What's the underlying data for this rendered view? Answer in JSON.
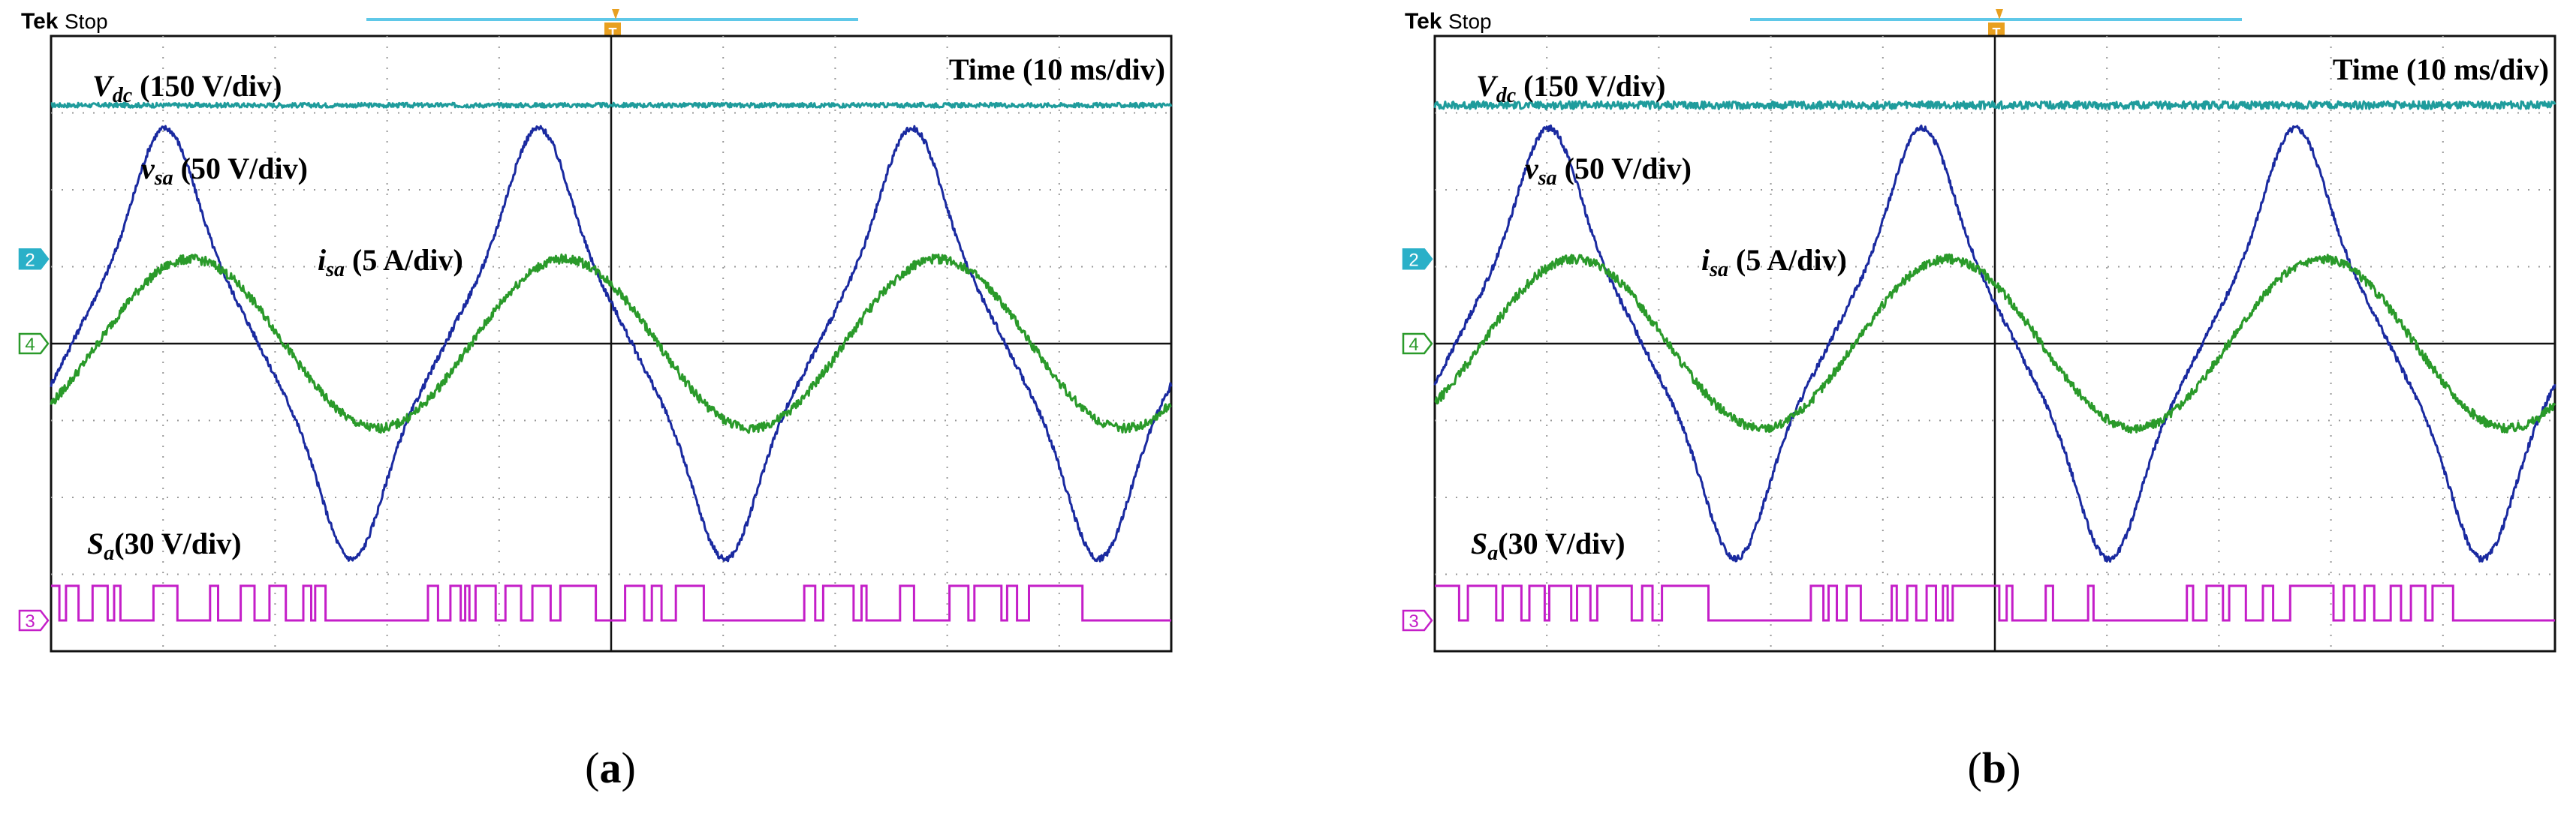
{
  "chart_data": [
    {
      "type": "line",
      "panel_label": "a",
      "header": {
        "brand": "Tek",
        "status": "Stop"
      },
      "time_scale_label": "Time (10 ms/div)",
      "grid": {
        "on": true,
        "x_divisions": 10,
        "y_divisions": 8
      },
      "x_range_ms": [
        0,
        100
      ],
      "y_range_div": [
        -4,
        4
      ],
      "channel_markers": [
        "2",
        "4",
        "3"
      ],
      "series": [
        {
          "name": "V_dc",
          "label_main": "V",
          "label_sub": "dc",
          "label_rest": " (150 V/div)",
          "color": "#1f9c9c",
          "waveform": "dc",
          "level_div": 3.1,
          "noise_div": 0.03
        },
        {
          "name": "v_sa",
          "label_main": "v",
          "label_sub": "sa",
          "label_rest": " (50 V/div)",
          "color": "#1a2aa0",
          "waveform": "peaky_sine",
          "frequency_hz": 30,
          "amplitude_div": 2.8,
          "phase_deg": -20,
          "noise_div": 0.04
        },
        {
          "name": "i_sa",
          "label_main": "i",
          "label_sub": "sa",
          "label_rest": " (5 A/div)",
          "color": "#2a9a2a",
          "waveform": "sine",
          "frequency_hz": 30,
          "amplitude_div": 1.1,
          "phase_deg": -45,
          "offset_div": 0.0,
          "noise_div": 0.06
        },
        {
          "name": "S_a",
          "label_main": "S",
          "label_sub": "a",
          "label_rest": "(30 V/div)",
          "color": "#c41ec8",
          "waveform": "pwm",
          "frequency_hz": 30,
          "low_div": -3.6,
          "high_div": -3.15
        }
      ]
    },
    {
      "type": "line",
      "panel_label": "b",
      "header": {
        "brand": "Tek",
        "status": "Stop"
      },
      "time_scale_label": "Time (10 ms/div)",
      "grid": {
        "on": true,
        "x_divisions": 10,
        "y_divisions": 8
      },
      "x_range_ms": [
        0,
        100
      ],
      "y_range_div": [
        -4,
        4
      ],
      "channel_markers": [
        "2",
        "4",
        "3"
      ],
      "series": [
        {
          "name": "V_dc",
          "label_main": "V",
          "label_sub": "dc",
          "label_rest": " (150 V/div)",
          "color": "#1f9c9c",
          "waveform": "dc",
          "level_div": 3.1,
          "noise_div": 0.05
        },
        {
          "name": "v_sa",
          "label_main": "v",
          "label_sub": "sa",
          "label_rest": " (50 V/div)",
          "color": "#1a2aa0",
          "waveform": "peaky_sine",
          "frequency_hz": 30,
          "amplitude_div": 2.8,
          "phase_deg": -20,
          "noise_div": 0.04
        },
        {
          "name": "i_sa",
          "label_main": "i",
          "label_sub": "sa",
          "label_rest": " (5 A/div)",
          "color": "#2a9a2a",
          "waveform": "sine",
          "frequency_hz": 30,
          "amplitude_div": 1.1,
          "phase_deg": -45,
          "offset_div": 0.0,
          "noise_div": 0.06
        },
        {
          "name": "S_a",
          "label_main": "S",
          "label_sub": "a",
          "label_rest": "(30 V/div)",
          "color": "#c41ec8",
          "waveform": "pwm",
          "frequency_hz": 30,
          "low_div": -3.6,
          "high_div": -3.15
        }
      ]
    }
  ]
}
